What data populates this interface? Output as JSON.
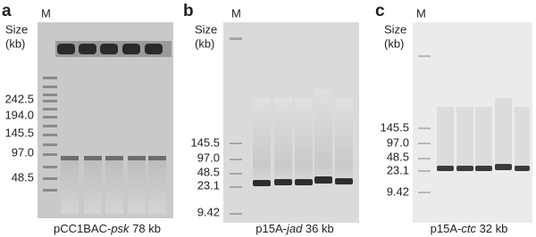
{
  "panels": [
    {
      "letter": "a",
      "marker": "M",
      "size_label": [
        "Size",
        "(kb)"
      ],
      "ladder": [
        "242.5",
        "194.0",
        "145.5",
        "97.0",
        "48.5"
      ],
      "caption": {
        "prefix": "pCC1BAC-",
        "italic": "psk",
        "suffix": " 78 kb"
      }
    },
    {
      "letter": "b",
      "marker": "M",
      "size_label": [
        "Size",
        "(kb)"
      ],
      "ladder": [
        "145.5",
        "97.0",
        "48.5",
        "23.1",
        "9.42"
      ],
      "caption": {
        "prefix": "p15A-",
        "italic": "jad",
        "suffix": " 36 kb"
      }
    },
    {
      "letter": "c",
      "marker": "M",
      "size_label": [
        "Size",
        "(kb)"
      ],
      "ladder": [
        "145.5",
        "97.0",
        "48.5",
        "23.1",
        "9.42"
      ],
      "caption": {
        "prefix": "p15A-",
        "italic": "ctc",
        "suffix": " 32 kb"
      }
    }
  ]
}
